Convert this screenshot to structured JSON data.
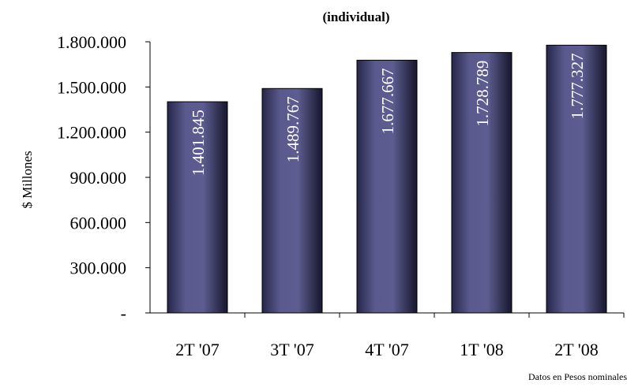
{
  "chart_data": {
    "type": "bar",
    "title": "(individual)",
    "ylabel": "$ Millones",
    "xlabel": "",
    "categories": [
      "2T '07",
      "3T '07",
      "4T '07",
      "1T '08",
      "2T '08"
    ],
    "values": [
      1401845,
      1489767,
      1677667,
      1728789,
      1777327
    ],
    "value_labels": [
      "1.401.845",
      "1.489.767",
      "1.677.667",
      "1.728.789",
      "1.777.327"
    ],
    "ylim": [
      0,
      1800000
    ],
    "yticks": [
      0,
      300000,
      600000,
      900000,
      1200000,
      1500000,
      1800000
    ],
    "ytick_labels": [
      "-",
      "300.000",
      "600.000",
      "900.000",
      "1.200.000",
      "1.500.000",
      "1.800.000"
    ],
    "grid": false,
    "bar_color": "#4a4a78"
  },
  "footnote": "Datos en Pesos nominales"
}
